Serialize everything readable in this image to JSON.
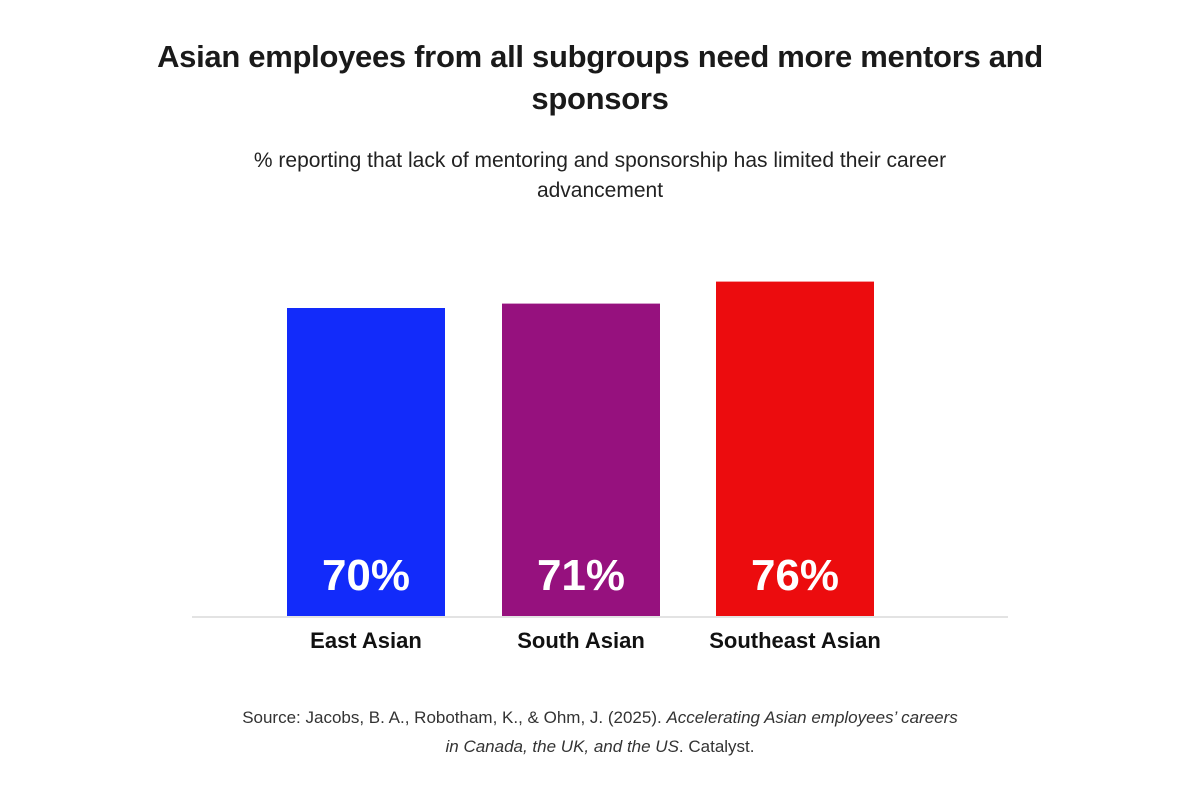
{
  "title": "Asian employees from all subgroups need more mentors and sponsors",
  "subtitle": "% reporting that lack of mentoring and sponsorship has limited their career advancement",
  "chart_data": {
    "type": "bar",
    "categories": [
      "East Asian",
      "South Asian",
      "Southeast Asian"
    ],
    "values": [
      70,
      71,
      76
    ],
    "value_labels": [
      "70%",
      "71%",
      "76%"
    ],
    "colors": [
      "#122BFA",
      "#96117E",
      "#EC0C0E"
    ],
    "ylim": [
      0,
      100
    ],
    "grid": false,
    "legend": "none"
  },
  "source": {
    "prefix": "Source: Jacobs, B. A., Robotham, K., & Ohm, J. (2025). ",
    "italic_title_line1": "Accelerating Asian employees’ careers",
    "italic_title_line2": "in Canada, the UK, and the US",
    "suffix": ". Catalyst."
  }
}
